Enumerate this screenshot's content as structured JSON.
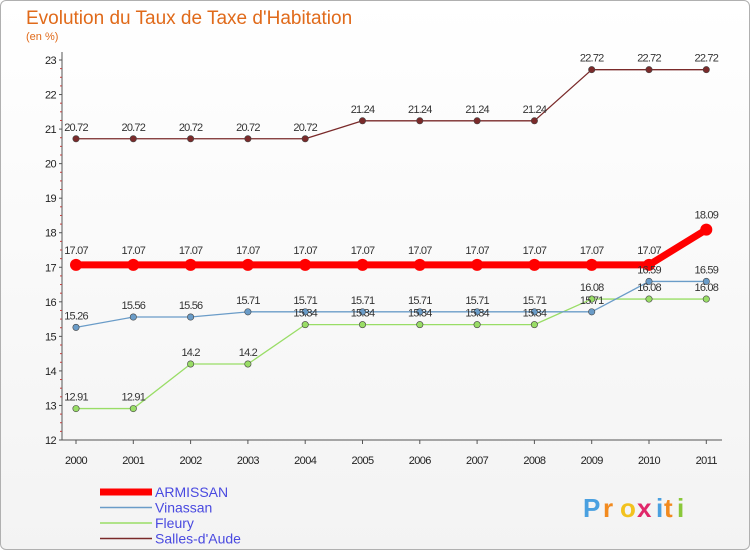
{
  "chart_data": {
    "type": "line",
    "title": "Evolution du Taux de Taxe d'Habitation",
    "ylabel": "(en %)",
    "xlabel": "",
    "categories": [
      "2000",
      "2001",
      "2002",
      "2003",
      "2004",
      "2005",
      "2006",
      "2007",
      "2008",
      "2009",
      "2010",
      "2011"
    ],
    "ylim": [
      12,
      23
    ],
    "yticks": [
      12,
      13,
      14,
      15,
      16,
      17,
      18,
      19,
      20,
      21,
      22,
      23
    ],
    "series": [
      {
        "name": "Salles-d'Aude",
        "color": "#7a2a2a",
        "values": [
          20.72,
          20.72,
          20.72,
          20.72,
          20.72,
          21.24,
          21.24,
          21.24,
          21.24,
          22.72,
          22.72,
          22.72
        ],
        "labels": [
          "20.72",
          "20.72",
          "20.72",
          "20.72",
          "20.72",
          "21.24",
          "21.24",
          "21.24",
          "21.24",
          "22.72",
          "22.72",
          "22.72"
        ]
      },
      {
        "name": "ARMISSAN",
        "color": "#ff0000",
        "values": [
          17.07,
          17.07,
          17.07,
          17.07,
          17.07,
          17.07,
          17.07,
          17.07,
          17.07,
          17.07,
          17.07,
          18.09
        ],
        "labels": [
          "17.07",
          "17.07",
          "17.07",
          "17.07",
          "17.07",
          "17.07",
          "17.07",
          "17.07",
          "17.07",
          "17.07",
          "17.07",
          "18.09"
        ]
      },
      {
        "name": "Vinassan",
        "color": "#6a9cc8",
        "values": [
          15.26,
          15.56,
          15.56,
          15.71,
          15.71,
          15.71,
          15.71,
          15.71,
          15.71,
          15.71,
          16.59,
          16.59
        ],
        "labels": [
          "15.26",
          "15.56",
          "15.56",
          "15.71",
          "15.71",
          "15.71",
          "15.71",
          "15.71",
          "15.71",
          "15.71",
          "16.59",
          "16.59"
        ]
      },
      {
        "name": "Fleury",
        "color": "#99dd66",
        "values": [
          12.91,
          12.91,
          14.2,
          14.2,
          15.34,
          15.34,
          15.34,
          15.34,
          15.34,
          16.08,
          16.08,
          16.08
        ],
        "labels": [
          "12.91",
          "12.91",
          "14.2",
          "14.2",
          "15.34",
          "15.34",
          "15.34",
          "15.34",
          "15.34",
          "16.08",
          "16.08",
          "16.08"
        ]
      }
    ],
    "legend": {
      "position": "bottom-left",
      "entries": [
        "ARMISSAN",
        "Vinassan",
        "Fleury",
        "Salles-d'Aude"
      ]
    }
  },
  "logo": {
    "text": "Proxiti",
    "letters": [
      "P",
      "r",
      "o",
      "x",
      "i",
      "t",
      "i"
    ],
    "colors": [
      "#4aa0e0",
      "#f28a1e",
      "#f2c21e",
      "#e0286a",
      "#4aa0e0",
      "#f28a1e",
      "#8ac83a"
    ]
  }
}
